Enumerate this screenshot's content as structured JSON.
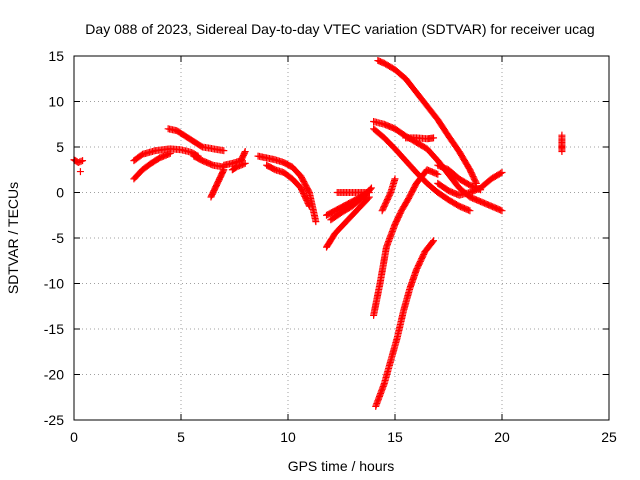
{
  "chart_data": {
    "type": "scatter",
    "title": "Day 088 of 2023, Sidereal Day-to-day VTEC variation (SDTVAR) for receiver ucag",
    "xlabel": "GPS time / hours",
    "ylabel": "SDTVAR / TECUs",
    "xlim": [
      0,
      25
    ],
    "ylim": [
      -25,
      15
    ],
    "xticks": [
      0,
      5,
      10,
      15,
      20,
      25
    ],
    "yticks": [
      -25,
      -20,
      -15,
      -10,
      -5,
      0,
      5,
      10,
      15
    ],
    "grid": true,
    "legend": "none",
    "marker": "plus",
    "color": "#ff0000",
    "series": [
      {
        "x": [
          0.0,
          0.2,
          0.4
        ],
        "y": [
          3.6,
          3.3,
          3.5
        ]
      },
      {
        "x": [
          0.3
        ],
        "y": [
          2.3
        ]
      },
      {
        "x": [
          2.8,
          3.2,
          3.8,
          4.5,
          5.0,
          5.5,
          5.8
        ],
        "y": [
          3.5,
          4.2,
          4.6,
          4.8,
          4.7,
          4.4,
          4.0
        ]
      },
      {
        "x": [
          2.8,
          3.2,
          3.6,
          4.0,
          4.5
        ],
        "y": [
          1.5,
          2.5,
          3.2,
          3.8,
          4.3
        ]
      },
      {
        "x": [
          4.4,
          4.8,
          5.2,
          5.6,
          6.0,
          6.5,
          7.0
        ],
        "y": [
          7.0,
          6.8,
          6.2,
          5.6,
          5.0,
          4.8,
          4.6
        ]
      },
      {
        "x": [
          5.6,
          6.0,
          6.5,
          7.0
        ],
        "y": [
          4.0,
          3.5,
          3.0,
          2.8
        ]
      },
      {
        "x": [
          6.4,
          6.6,
          6.8,
          7.0
        ],
        "y": [
          -0.5,
          0.5,
          1.5,
          2.5
        ]
      },
      {
        "x": [
          7.0,
          7.4,
          7.8,
          8.0
        ],
        "y": [
          3.0,
          3.2,
          3.5,
          4.5
        ]
      },
      {
        "x": [
          7.4,
          7.6,
          7.8,
          8.0
        ],
        "y": [
          2.5,
          2.8,
          3.0,
          3.2
        ]
      },
      {
        "x": [
          8.6,
          9.0,
          9.4,
          9.8,
          10.2,
          10.6,
          11.0,
          11.3
        ],
        "y": [
          4.0,
          3.8,
          3.6,
          3.3,
          2.8,
          1.8,
          0.0,
          -3.2
        ]
      },
      {
        "x": [
          9.0,
          9.4,
          9.8,
          10.2,
          10.6,
          11.0
        ],
        "y": [
          3.0,
          2.5,
          2.2,
          1.5,
          0.5,
          -1.5
        ]
      },
      {
        "x": [
          11.8,
          12.2,
          12.6,
          13.0,
          13.4,
          13.7
        ],
        "y": [
          -2.5,
          -2.0,
          -1.5,
          -1.0,
          -0.5,
          0.0
        ]
      },
      {
        "x": [
          11.8,
          12.2,
          12.6,
          13.0,
          13.4,
          13.8
        ],
        "y": [
          -6.0,
          -4.5,
          -3.5,
          -2.5,
          -1.5,
          -0.5
        ]
      },
      {
        "x": [
          12.0,
          12.5,
          13.0,
          13.5,
          13.9
        ],
        "y": [
          -3.0,
          -2.2,
          -1.5,
          -0.5,
          0.5
        ]
      },
      {
        "x": [
          12.3,
          12.8,
          13.3,
          13.8
        ],
        "y": [
          0.0,
          0.0,
          0.0,
          0.0
        ]
      },
      {
        "x": [
          14.2,
          14.5,
          15.0,
          15.5,
          16.0,
          16.5,
          17.0,
          17.5,
          18.0,
          18.5,
          18.8
        ],
        "y": [
          14.5,
          14.2,
          13.5,
          12.5,
          11.0,
          9.5,
          8.0,
          6.2,
          4.5,
          2.5,
          1.0
        ]
      },
      {
        "x": [
          14.0,
          14.5,
          15.0,
          15.5,
          16.0,
          16.5,
          17.0,
          17.5,
          18.0,
          18.5,
          19.0,
          19.5,
          20.0
        ],
        "y": [
          7.8,
          7.5,
          7.0,
          6.2,
          5.5,
          4.8,
          3.5,
          2.0,
          0.5,
          -0.5,
          -1.0,
          -1.5,
          -2.0
        ]
      },
      {
        "x": [
          14.0,
          14.5,
          15.0,
          15.5,
          16.0,
          16.5,
          17.0,
          17.5,
          18.0,
          18.5
        ],
        "y": [
          7.0,
          6.0,
          4.8,
          3.5,
          2.2,
          1.0,
          0.0,
          -0.8,
          -1.5,
          -2.0
        ]
      },
      {
        "x": [
          15.5,
          16.0,
          16.5,
          16.8
        ],
        "y": [
          6.0,
          6.0,
          5.9,
          6.0
        ]
      },
      {
        "x": [
          14.0,
          14.3,
          14.6,
          15.0,
          15.3,
          15.6,
          16.0,
          16.5,
          17.0
        ],
        "y": [
          -13.5,
          -10.0,
          -6.0,
          -3.5,
          -2.0,
          -0.8,
          1.0,
          2.5,
          2.0
        ]
      },
      {
        "x": [
          17.0,
          17.5,
          18.0,
          18.5,
          19.0,
          19.5,
          20.0
        ],
        "y": [
          1.0,
          0.2,
          -0.3,
          0.0,
          0.5,
          1.5,
          2.2
        ]
      },
      {
        "x": [
          14.1,
          14.5,
          14.8,
          15.1,
          15.4,
          15.7,
          16.0,
          16.4,
          16.8
        ],
        "y": [
          -23.5,
          -21.0,
          -18.5,
          -16.0,
          -13.0,
          -10.5,
          -8.5,
          -6.5,
          -5.3
        ]
      },
      {
        "x": [
          14.4,
          14.8,
          15.0
        ],
        "y": [
          -2.0,
          0.0,
          1.5
        ]
      },
      {
        "x": [
          17.0,
          17.5,
          18.0,
          18.5,
          19.0
        ],
        "y": [
          3.0,
          2.5,
          1.5,
          0.8,
          0.3
        ]
      },
      {
        "x": [
          22.8,
          22.8,
          22.8,
          22.8,
          22.8
        ],
        "y": [
          6.3,
          5.8,
          5.2,
          4.8,
          4.5
        ]
      }
    ]
  }
}
